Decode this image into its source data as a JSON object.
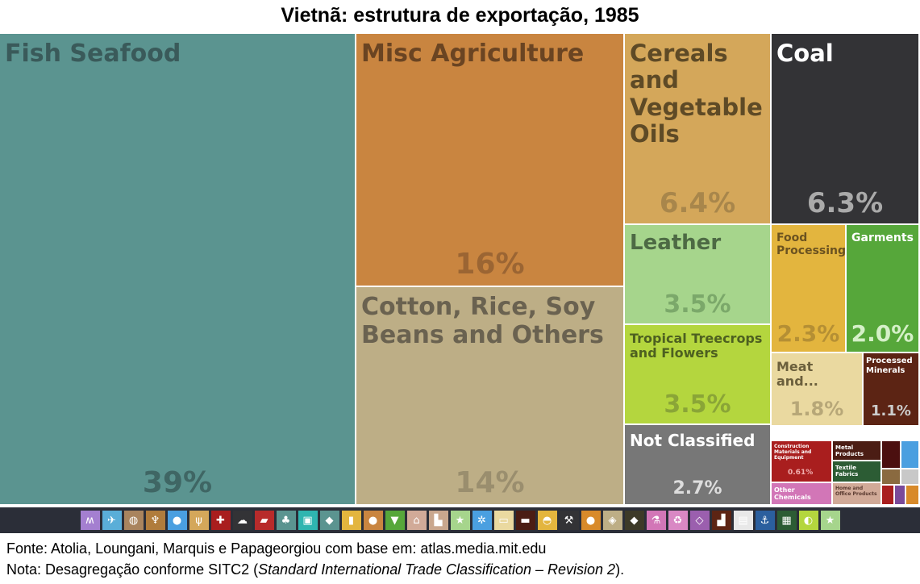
{
  "chart_data": {
    "type": "treemap",
    "title": "Vietnã: estrutura de exportação, 1985",
    "items": [
      {
        "name": "Fish Seafood",
        "value": 39,
        "label": "39%",
        "color": "#5b9490"
      },
      {
        "name": "Misc Agriculture",
        "value": 16,
        "label": "16%",
        "color": "#c98540"
      },
      {
        "name": "Cotton, Rice, Soy Beans and Others",
        "value": 14,
        "label": "14%",
        "color": "#bdae86"
      },
      {
        "name": "Cereals and Vegetable Oils",
        "value": 6.4,
        "label": "6.4%",
        "color": "#d4a75a"
      },
      {
        "name": "Coal",
        "value": 6.3,
        "label": "6.3%",
        "color": "#333336"
      },
      {
        "name": "Leather",
        "value": 3.5,
        "label": "3.5%",
        "color": "#a6d58c"
      },
      {
        "name": "Tropical Treecrops and Flowers",
        "value": 3.5,
        "label": "3.5%",
        "color": "#b4d63e"
      },
      {
        "name": "Not Classified",
        "value": 2.7,
        "label": "2.7%",
        "color": "#777777"
      },
      {
        "name": "Food Processing",
        "value": 2.3,
        "label": "2.3%",
        "color": "#e3b53e"
      },
      {
        "name": "Garments",
        "value": 2.0,
        "label": "2.0%",
        "color": "#56a73a"
      },
      {
        "name": "Meat and...",
        "value": 1.8,
        "label": "1.8%",
        "color": "#ead9a0"
      },
      {
        "name": "Processed Minerals",
        "value": 1.1,
        "label": "1.1%",
        "color": "#5c2414"
      },
      {
        "name": "Construction Materials and Equipment",
        "value": 0.61,
        "label": "0.61%",
        "color": "#a91e1e"
      },
      {
        "name": "Metal Products",
        "value": null,
        "label": "",
        "color": "#4b1d14"
      },
      {
        "name": "Textile Fabrics",
        "value": null,
        "label": "",
        "color": "#2c5c34"
      },
      {
        "name": "Other Chemicals",
        "value": null,
        "label": "",
        "color": "#d276b7"
      },
      {
        "name": "Home and Office Products",
        "value": null,
        "label": "",
        "color": "#d1aa98"
      }
    ]
  },
  "icon_bar": {
    "icons": [
      {
        "name": "textiles-icon",
        "glyph": "ʍ",
        "color": "#a47fd0"
      },
      {
        "name": "airplane-icon",
        "glyph": "✈",
        "color": "#5aaed8"
      },
      {
        "name": "yarn-icon",
        "glyph": "◍",
        "color": "#a9845e"
      },
      {
        "name": "wine-glass-icon",
        "glyph": "♆",
        "color": "#b07c3c"
      },
      {
        "name": "water-drop-icon",
        "glyph": "●",
        "color": "#4a9fe0"
      },
      {
        "name": "wheat-icon",
        "glyph": "ψ",
        "color": "#d4a75a"
      },
      {
        "name": "medical-cross-icon",
        "glyph": "✚",
        "color": "#a91e1e"
      },
      {
        "name": "cloud-icon",
        "glyph": "☁",
        "color": "#333336"
      },
      {
        "name": "leather-icon",
        "glyph": "▰",
        "color": "#b82b2b"
      },
      {
        "name": "tree-icon",
        "glyph": "♣",
        "color": "#5b9490"
      },
      {
        "name": "monitor-icon",
        "glyph": "▣",
        "color": "#2fb5b0"
      },
      {
        "name": "fish-icon",
        "glyph": "◆",
        "color": "#5b9490"
      },
      {
        "name": "bottle-icon",
        "glyph": "▮",
        "color": "#e3b53e"
      },
      {
        "name": "apple-icon",
        "glyph": "●",
        "color": "#c98540"
      },
      {
        "name": "shirt-icon",
        "glyph": "▼",
        "color": "#56a73a"
      },
      {
        "name": "house-icon",
        "glyph": "⌂",
        "color": "#d1aa98"
      },
      {
        "name": "boot-icon",
        "glyph": "▙",
        "color": "#c9a78e"
      },
      {
        "name": "star-badge-icon",
        "glyph": "★",
        "color": "#a6d58c"
      },
      {
        "name": "gears-icon",
        "glyph": "✲",
        "color": "#4a9fe0"
      },
      {
        "name": "fabric-roll-icon",
        "glyph": "▭",
        "color": "#ead9a0"
      },
      {
        "name": "anvil-icon",
        "glyph": "▬",
        "color": "#4b1d14"
      },
      {
        "name": "cheese-icon",
        "glyph": "◓",
        "color": "#e3b53e"
      },
      {
        "name": "pickaxe-icon",
        "glyph": "⚒",
        "color": "#333336"
      },
      {
        "name": "pumpkin-icon",
        "glyph": "●",
        "color": "#d88a2a"
      },
      {
        "name": "box-icon",
        "glyph": "◈",
        "color": "#bdae86"
      },
      {
        "name": "oil-drop-icon",
        "glyph": "◆",
        "color": "#3d3a28"
      },
      {
        "name": "flask-icon",
        "glyph": "⚗",
        "color": "#d276b7"
      },
      {
        "name": "recycle-icon",
        "glyph": "♻",
        "color": "#d988c4"
      },
      {
        "name": "diamond-icon",
        "glyph": "◇",
        "color": "#9b5fae"
      },
      {
        "name": "factory-icon",
        "glyph": "▟",
        "color": "#5c2414"
      },
      {
        "name": "document-icon",
        "glyph": "▤",
        "color": "#e8e8e8"
      },
      {
        "name": "anchor-icon",
        "glyph": "⚓",
        "color": "#2b5f9e"
      },
      {
        "name": "grid-icon",
        "glyph": "▦",
        "color": "#2c5c34"
      },
      {
        "name": "leaf-icon",
        "glyph": "◐",
        "color": "#b4d63e"
      },
      {
        "name": "star-icon",
        "glyph": "★",
        "color": "#a6d58c"
      }
    ]
  },
  "footer": {
    "source": "Fonte: Atolia, Loungani, Marquis e Papageorgiou com base em: atlas.media.mit.edu",
    "note_prefix": "Nota: Desagregação conforme SITC2 (",
    "note_italic": "Standard International Trade Classification – Revision 2",
    "note_suffix": ")."
  }
}
